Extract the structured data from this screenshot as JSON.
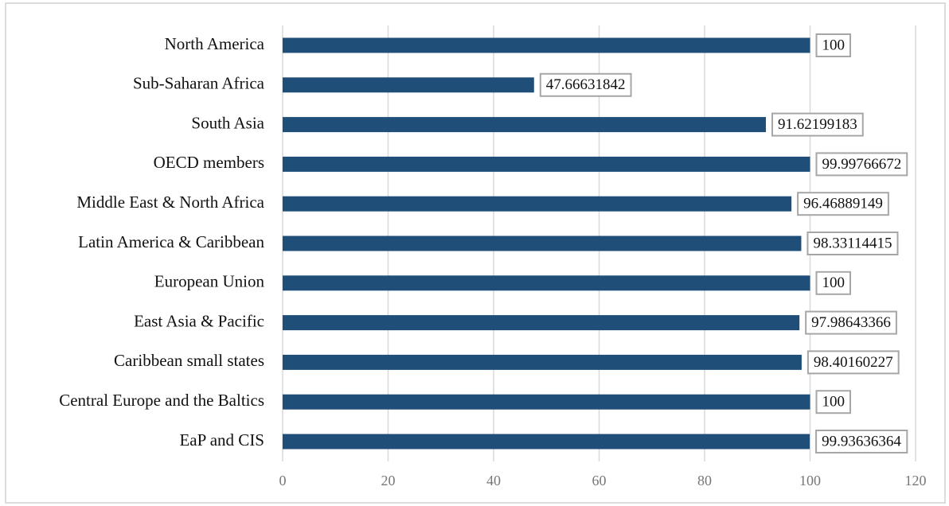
{
  "chart_data": {
    "type": "barh",
    "categories": [
      "North America",
      "Sub-Saharan Africa",
      "South Asia",
      "OECD members",
      "Middle East & North Africa",
      "Latin America & Caribbean",
      "European Union",
      "East Asia & Pacific",
      "Caribbean small states",
      "Central Europe and the Baltics",
      "EaP and CIS"
    ],
    "values": [
      100,
      47.66631842,
      91.62199183,
      99.99766672,
      96.46889149,
      98.33114415,
      100,
      97.98643366,
      98.40160227,
      100,
      99.93636364
    ],
    "color": "#1f4e79",
    "xlim": [
      0,
      120
    ],
    "xticks": [
      0,
      20,
      40,
      60,
      80,
      100,
      120
    ],
    "grid": true
  }
}
